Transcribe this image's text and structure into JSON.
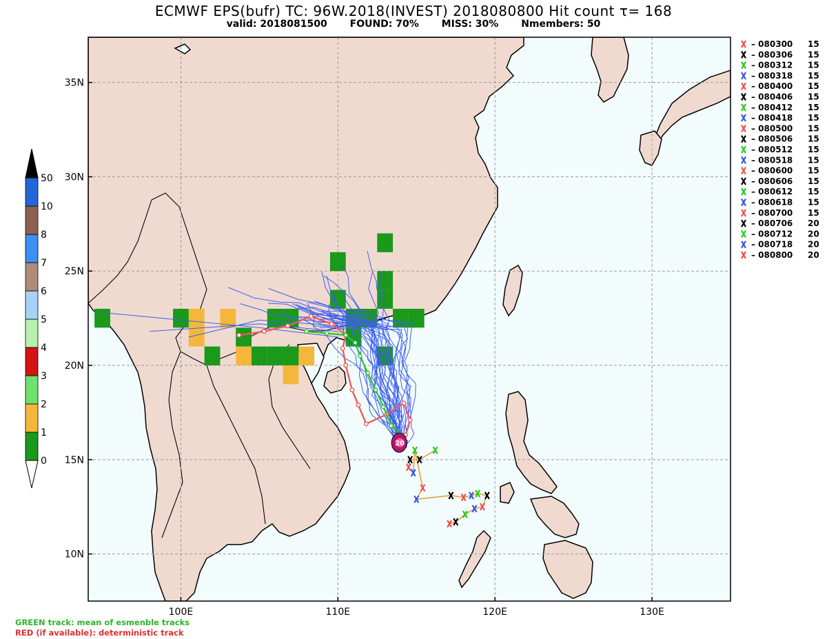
{
  "title": "ECMWF EPS(bufr) TC: 96W.2018(INVEST) 2018080800 Hit count  τ= 168",
  "subtitle": {
    "valid": "valid: 2018081500",
    "found": "FOUND: 70%",
    "miss": "MISS: 30%",
    "nmembers": "Nmembers: 50"
  },
  "axes": {
    "lon_ticks": [
      {
        "lon": 100,
        "label": "100E"
      },
      {
        "lon": 110,
        "label": "110E"
      },
      {
        "lon": 120,
        "label": "120E"
      },
      {
        "lon": 130,
        "label": "130E"
      }
    ],
    "lat_ticks": [
      {
        "lat": 10,
        "label": "10N"
      },
      {
        "lat": 15,
        "label": "15N"
      },
      {
        "lat": 20,
        "label": "20N"
      },
      {
        "lat": 25,
        "label": "25N"
      },
      {
        "lat": 30,
        "label": "30N"
      },
      {
        "lat": 35,
        "label": "35N"
      }
    ]
  },
  "colorbar": {
    "bins": [
      {
        "label": "0",
        "color": "#1a991a"
      },
      {
        "label": "1",
        "color": "#f5b73b"
      },
      {
        "label": "2",
        "color": "#6fe06f"
      },
      {
        "label": "3",
        "color": "#d31414"
      },
      {
        "label": "4",
        "color": "#b8f0b0"
      },
      {
        "label": "5",
        "color": "#a6d3f5"
      },
      {
        "label": "6",
        "color": "#b08a7a"
      },
      {
        "label": "7",
        "color": "#3d8ff0"
      },
      {
        "label": "8",
        "color": "#8b6252"
      },
      {
        "label": "10",
        "color": "#2266d9"
      },
      {
        "label": "50",
        "color": "#000000"
      }
    ]
  },
  "legend": [
    {
      "time": "080300",
      "count": "15",
      "color": "#f05050"
    },
    {
      "time": "080306",
      "count": "15",
      "color": "#000000"
    },
    {
      "time": "080312",
      "count": "15",
      "color": "#22cc22"
    },
    {
      "time": "080318",
      "count": "15",
      "color": "#3355ee"
    },
    {
      "time": "080400",
      "count": "15",
      "color": "#f05050"
    },
    {
      "time": "080406",
      "count": "15",
      "color": "#000000"
    },
    {
      "time": "080412",
      "count": "15",
      "color": "#22cc22"
    },
    {
      "time": "080418",
      "count": "15",
      "color": "#3355ee"
    },
    {
      "time": "080500",
      "count": "15",
      "color": "#f05050"
    },
    {
      "time": "080506",
      "count": "15",
      "color": "#000000"
    },
    {
      "time": "080512",
      "count": "15",
      "color": "#22cc22"
    },
    {
      "time": "080518",
      "count": "15",
      "color": "#3355ee"
    },
    {
      "time": "080600",
      "count": "15",
      "color": "#f05050"
    },
    {
      "time": "080606",
      "count": "15",
      "color": "#000000"
    },
    {
      "time": "080612",
      "count": "15",
      "color": "#22cc22"
    },
    {
      "time": "080618",
      "count": "15",
      "color": "#3355ee"
    },
    {
      "time": "080700",
      "count": "15",
      "color": "#f05050"
    },
    {
      "time": "080706",
      "count": "20",
      "color": "#000000"
    },
    {
      "time": "080712",
      "count": "20",
      "color": "#22cc22"
    },
    {
      "time": "080718",
      "count": "20",
      "color": "#3355ee"
    },
    {
      "time": "080800",
      "count": "20",
      "color": "#f05050"
    }
  ],
  "hit_cells": [
    {
      "lon": 95,
      "lat": 22.5,
      "bin": 0
    },
    {
      "lon": 100,
      "lat": 22.5,
      "bin": 0
    },
    {
      "lon": 101,
      "lat": 22.5,
      "bin": 1
    },
    {
      "lon": 101,
      "lat": 21.5,
      "bin": 1
    },
    {
      "lon": 102,
      "lat": 20.5,
      "bin": 0
    },
    {
      "lon": 103,
      "lat": 22.5,
      "bin": 1
    },
    {
      "lon": 104,
      "lat": 21.5,
      "bin": 0
    },
    {
      "lon": 104,
      "lat": 20.5,
      "bin": 1
    },
    {
      "lon": 105,
      "lat": 20.5,
      "bin": 0
    },
    {
      "lon": 106,
      "lat": 20.5,
      "bin": 0
    },
    {
      "lon": 106,
      "lat": 22.5,
      "bin": 0
    },
    {
      "lon": 107,
      "lat": 22.5,
      "bin": 0
    },
    {
      "lon": 107,
      "lat": 20.5,
      "bin": 0
    },
    {
      "lon": 107,
      "lat": 19.5,
      "bin": 1
    },
    {
      "lon": 108,
      "lat": 20.5,
      "bin": 1
    },
    {
      "lon": 110,
      "lat": 25.5,
      "bin": 0
    },
    {
      "lon": 110,
      "lat": 23.5,
      "bin": 0
    },
    {
      "lon": 111,
      "lat": 22.5,
      "bin": 0
    },
    {
      "lon": 112,
      "lat": 22.5,
      "bin": 0
    },
    {
      "lon": 113,
      "lat": 26.5,
      "bin": 0
    },
    {
      "lon": 113,
      "lat": 24.5,
      "bin": 0
    },
    {
      "lon": 113,
      "lat": 23.5,
      "bin": 0
    },
    {
      "lon": 114,
      "lat": 22.5,
      "bin": 0
    },
    {
      "lon": 115,
      "lat": 22.5,
      "bin": 0
    },
    {
      "lon": 113,
      "lat": 20.5,
      "bin": 0
    },
    {
      "lon": 111,
      "lat": 21.5,
      "bin": 0
    }
  ],
  "mean_track": [
    [
      114.2,
      16.2
    ],
    [
      113.4,
      16.8
    ],
    [
      112.9,
      17.8
    ],
    [
      112.4,
      18.7
    ],
    [
      111.9,
      19.6
    ],
    [
      111.4,
      20.5
    ],
    [
      111.1,
      21.2
    ],
    [
      110.5,
      21.6
    ],
    [
      109.3,
      21.7
    ],
    [
      108.0,
      21.8
    ]
  ],
  "deterministic_track": [
    [
      114.3,
      16.3
    ],
    [
      114.6,
      17.1
    ],
    [
      114.2,
      18.0
    ],
    [
      113.1,
      17.4
    ],
    [
      111.8,
      16.9
    ],
    [
      111.3,
      17.9
    ],
    [
      110.9,
      18.7
    ],
    [
      110.5,
      20.0
    ],
    [
      110.3,
      20.9
    ],
    [
      110.5,
      21.6
    ],
    [
      109.6,
      22.2
    ],
    [
      108.3,
      22.6
    ],
    [
      106.8,
      22.1
    ],
    [
      105.3,
      21.8
    ],
    [
      103.7,
      21.6
    ]
  ],
  "storm_marker": {
    "lon": 113.9,
    "lat": 15.9,
    "label": "20"
  },
  "observed_points": [
    {
      "lon": 116.2,
      "lat": 15.5,
      "time": "080300",
      "color": "#22cc22"
    },
    {
      "lon": 115.2,
      "lat": 15.0,
      "time": "080306",
      "color": "#000000"
    },
    {
      "lon": 114.6,
      "lat": 15.0,
      "time": "080306",
      "color": "#000000"
    },
    {
      "lon": 114.5,
      "lat": 14.6,
      "time": "080312",
      "color": "#f05050"
    },
    {
      "lon": 114.8,
      "lat": 14.3,
      "time": "080318",
      "color": "#3355ee"
    },
    {
      "lon": 114.9,
      "lat": 15.5,
      "time": "080312",
      "color": "#22cc22"
    },
    {
      "lon": 115.4,
      "lat": 13.5,
      "time": "080400",
      "color": "#f05050"
    },
    {
      "lon": 115.0,
      "lat": 12.9,
      "time": "080406",
      "color": "#3355ee"
    },
    {
      "lon": 117.2,
      "lat": 13.1,
      "time": "080412",
      "color": "#000000"
    },
    {
      "lon": 118.0,
      "lat": 13.0,
      "time": "080418",
      "color": "#f05050"
    },
    {
      "lon": 118.5,
      "lat": 13.1,
      "time": "080500",
      "color": "#3355ee"
    },
    {
      "lon": 118.9,
      "lat": 13.2,
      "time": "080506",
      "color": "#22cc22"
    },
    {
      "lon": 119.5,
      "lat": 13.1,
      "time": "080512",
      "color": "#000000"
    },
    {
      "lon": 119.2,
      "lat": 12.5,
      "time": "080518",
      "color": "#f05050"
    },
    {
      "lon": 118.7,
      "lat": 12.4,
      "time": "080600",
      "color": "#3355ee"
    },
    {
      "lon": 118.1,
      "lat": 12.1,
      "time": "080606",
      "color": "#22cc22"
    },
    {
      "lon": 117.5,
      "lat": 11.7,
      "time": "080612",
      "color": "#000000"
    },
    {
      "lon": 117.1,
      "lat": 11.6,
      "time": "080618",
      "color": "#f05050"
    }
  ],
  "footer": {
    "green": "GREEN track: mean of esmenble tracks",
    "red": "RED (if available): deterministic track"
  }
}
